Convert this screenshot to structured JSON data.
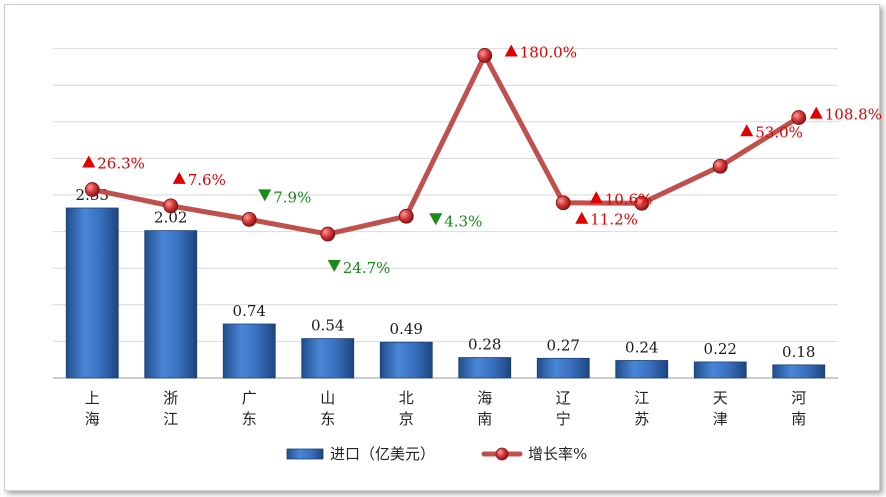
{
  "chart_data": {
    "type": "bar",
    "categories": [
      "上海",
      "浙江",
      "广东",
      "山东",
      "北京",
      "海南",
      "辽宁",
      "江苏",
      "天津",
      "河南"
    ],
    "series": [
      {
        "name": "进口（亿美元）",
        "type": "bar",
        "color": "#3a70c0",
        "values": [
          2.33,
          2.02,
          0.74,
          0.54,
          0.49,
          0.28,
          0.27,
          0.24,
          0.22,
          0.18
        ],
        "labels": [
          "2.33",
          "2.02",
          "0.74",
          "0.54",
          "0.49",
          "0.28",
          "0.27",
          "0.24",
          "0.22",
          "0.18"
        ]
      },
      {
        "name": "增长率%",
        "type": "line",
        "color": "#c0504d",
        "values": [
          26.3,
          7.6,
          -7.9,
          -24.7,
          -4.3,
          180.0,
          11.2,
          10.6,
          53.0,
          108.8
        ],
        "labels": [
          "26.3%",
          "7.6%",
          "7.9%",
          "24.7%",
          "4.3%",
          "180.0%",
          "11.2%",
          "10.6%",
          "53.0%",
          "108.8%"
        ],
        "direction": [
          "up",
          "up",
          "down",
          "down",
          "down",
          "up",
          "up",
          "up",
          "up",
          "up"
        ]
      }
    ],
    "up_color": "#e00000",
    "down_color": "#1a8a1a",
    "grid": true,
    "legend_position": "bottom"
  },
  "legend": {
    "bar_label": "进口（亿美元）",
    "line_label": "增长率%"
  }
}
